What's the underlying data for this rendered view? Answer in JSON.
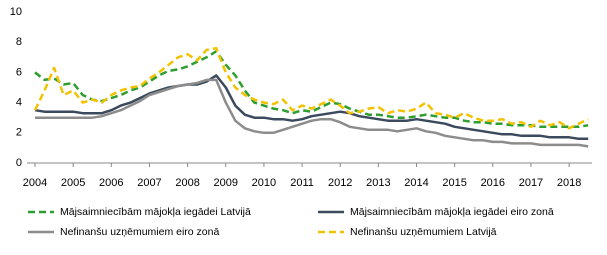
{
  "chart_data": {
    "type": "line",
    "x": [
      2004,
      2004.25,
      2004.5,
      2004.75,
      2005,
      2005.25,
      2005.5,
      2005.75,
      2006,
      2006.25,
      2006.5,
      2006.75,
      2007,
      2007.25,
      2007.5,
      2007.75,
      2008,
      2008.25,
      2008.5,
      2008.75,
      2009,
      2009.25,
      2009.5,
      2009.75,
      2010,
      2010.25,
      2010.5,
      2010.75,
      2011,
      2011.25,
      2011.5,
      2011.75,
      2012,
      2012.25,
      2012.5,
      2012.75,
      2013,
      2013.25,
      2013.5,
      2013.75,
      2014,
      2014.25,
      2014.5,
      2014.75,
      2015,
      2015.25,
      2015.5,
      2015.75,
      2016,
      2016.25,
      2016.5,
      2016.75,
      2017,
      2017.25,
      2017.5,
      2017.75,
      2018,
      2018.25,
      2018.5
    ],
    "series": [
      {
        "name": "Mājsaimniecībām mājokļa iegādei Latvijā",
        "color": "#2e9e2e",
        "dashed": true,
        "values": [
          6.0,
          5.5,
          5.6,
          5.2,
          5.3,
          4.5,
          4.2,
          4.1,
          4.3,
          4.5,
          4.8,
          5.0,
          5.4,
          5.8,
          6.1,
          6.2,
          6.4,
          6.7,
          7.0,
          7.4,
          6.5,
          5.8,
          4.8,
          4.0,
          3.8,
          3.6,
          3.5,
          3.3,
          3.5,
          3.4,
          3.7,
          4.0,
          3.9,
          3.6,
          3.4,
          3.2,
          3.2,
          3.1,
          3.0,
          3.0,
          3.1,
          3.2,
          3.1,
          3.0,
          3.0,
          2.8,
          2.7,
          2.7,
          2.6,
          2.6,
          2.5,
          2.5,
          2.5,
          2.4,
          2.4,
          2.4,
          2.4,
          2.4,
          2.5
        ]
      },
      {
        "name": "Mājsaimniecībām mājokļa iegādei eiro zonā",
        "color": "#3b4a5c",
        "dashed": false,
        "values": [
          3.5,
          3.4,
          3.4,
          3.4,
          3.4,
          3.3,
          3.3,
          3.3,
          3.5,
          3.8,
          4.0,
          4.3,
          4.6,
          4.8,
          5.0,
          5.1,
          5.2,
          5.2,
          5.4,
          5.8,
          5.0,
          3.8,
          3.2,
          3.0,
          3.0,
          2.9,
          2.9,
          2.8,
          2.9,
          3.1,
          3.2,
          3.3,
          3.4,
          3.3,
          3.1,
          3.0,
          2.9,
          2.8,
          2.8,
          2.8,
          2.9,
          2.8,
          2.7,
          2.6,
          2.4,
          2.3,
          2.2,
          2.1,
          2.0,
          1.9,
          1.9,
          1.8,
          1.8,
          1.8,
          1.7,
          1.7,
          1.7,
          1.6,
          1.6
        ]
      },
      {
        "name": "Nefinanšu uzņēmumiem eiro zonā",
        "color": "#8c8c8c",
        "dashed": false,
        "values": [
          3.0,
          3.0,
          3.0,
          3.0,
          3.0,
          3.0,
          3.0,
          3.1,
          3.3,
          3.5,
          3.8,
          4.1,
          4.5,
          4.7,
          4.9,
          5.1,
          5.2,
          5.3,
          5.5,
          5.5,
          4.0,
          2.8,
          2.3,
          2.1,
          2.0,
          2.0,
          2.2,
          2.4,
          2.6,
          2.8,
          2.9,
          2.9,
          2.7,
          2.4,
          2.3,
          2.2,
          2.2,
          2.2,
          2.1,
          2.2,
          2.3,
          2.1,
          2.0,
          1.8,
          1.7,
          1.6,
          1.5,
          1.5,
          1.4,
          1.4,
          1.3,
          1.3,
          1.3,
          1.2,
          1.2,
          1.2,
          1.2,
          1.2,
          1.1
        ]
      },
      {
        "name": "Nefinanšu uzņēmumiem Latvijā",
        "color": "#f2c200",
        "dashed": true,
        "values": [
          3.5,
          4.8,
          6.3,
          4.5,
          4.8,
          4.0,
          4.2,
          4.0,
          4.5,
          4.8,
          5.0,
          5.1,
          5.6,
          6.0,
          6.5,
          7.0,
          7.2,
          6.8,
          7.5,
          7.6,
          6.0,
          5.0,
          4.5,
          4.2,
          4.0,
          3.9,
          4.2,
          3.5,
          3.8,
          3.6,
          3.9,
          4.2,
          3.8,
          3.3,
          3.4,
          3.6,
          3.7,
          3.3,
          3.5,
          3.4,
          3.6,
          4.0,
          3.3,
          3.2,
          3.0,
          3.3,
          3.0,
          2.8,
          2.8,
          2.9,
          2.6,
          2.7,
          2.4,
          2.8,
          2.5,
          2.7,
          2.3,
          2.6,
          2.9
        ]
      }
    ],
    "xlim": [
      2004,
      2018.6
    ],
    "xticks": [
      2004,
      2005,
      2006,
      2007,
      2008,
      2009,
      2010,
      2011,
      2012,
      2013,
      2014,
      2015,
      2016,
      2017,
      2018
    ],
    "ylim": [
      0,
      10
    ],
    "yticks": [
      0,
      2,
      4,
      6,
      8,
      10
    ],
    "grid": false
  }
}
